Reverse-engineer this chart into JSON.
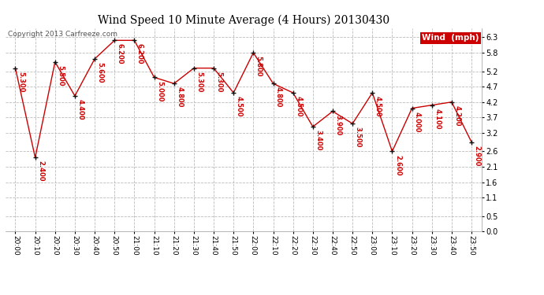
{
  "title": "Wind Speed 10 Minute Average (4 Hours) 20130430",
  "copyright": "Copyright 2013 Carfreeze.com",
  "legend_label": "Wind  (mph)",
  "times": [
    "20:00",
    "20:10",
    "20:20",
    "20:30",
    "20:40",
    "20:50",
    "21:00",
    "21:10",
    "21:20",
    "21:30",
    "21:40",
    "21:50",
    "22:00",
    "22:10",
    "22:20",
    "22:30",
    "22:40",
    "22:50",
    "23:00",
    "23:10",
    "23:20",
    "23:30",
    "23:40",
    "23:50"
  ],
  "values": [
    5.3,
    2.4,
    5.5,
    4.4,
    5.6,
    6.2,
    6.2,
    5.0,
    4.8,
    5.3,
    5.3,
    4.5,
    5.8,
    4.8,
    4.5,
    3.4,
    3.9,
    3.5,
    4.5,
    2.6,
    4.0,
    4.1,
    4.2,
    2.9
  ],
  "labels": [
    "5.300",
    "2.400",
    "5.500",
    "4.400",
    "5.600",
    "6.200",
    "6.200",
    "5.000",
    "4.800",
    "5.300",
    "5.300",
    "4.500",
    "5.800",
    "4.800",
    "4.500",
    "3.400",
    "3.900",
    "3.500",
    "4.500",
    "2.600",
    "4.000",
    "4.100",
    "4.200",
    "2.900"
  ],
  "line_color": "#cc0000",
  "marker_color": "#111111",
  "label_color": "#cc0000",
  "background_color": "#ffffff",
  "grid_color": "#bbbbbb",
  "yticks": [
    0.0,
    0.5,
    1.1,
    1.6,
    2.1,
    2.6,
    3.2,
    3.7,
    4.2,
    4.7,
    5.2,
    5.8,
    6.3
  ],
  "ylim": [
    0.0,
    6.6
  ],
  "title_fontsize": 10,
  "label_fontsize": 6,
  "copyright_fontsize": 6.5,
  "legend_fontsize": 7.5
}
